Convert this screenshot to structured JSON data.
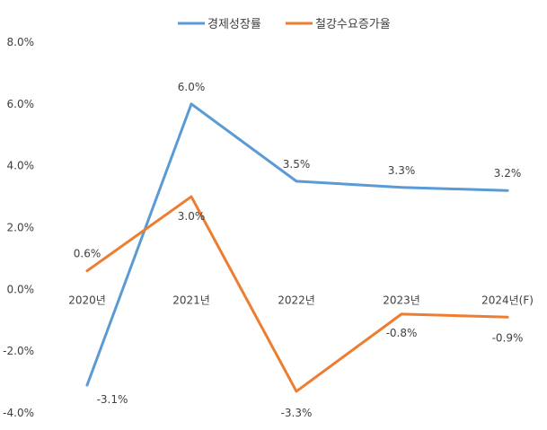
{
  "chart_data": {
    "type": "line",
    "title": "",
    "xlabel": "",
    "ylabel": "",
    "categories": [
      "2020년",
      "2021년",
      "2022년",
      "2023년",
      "2024년(F)"
    ],
    "ylim": [
      -4,
      8
    ],
    "yticks": [
      8,
      6,
      4,
      2,
      0,
      -2,
      -4
    ],
    "ytick_labels": [
      "8.0%",
      "6.0%",
      "4.0%",
      "2.0%",
      "0.0%",
      "-2.0%",
      "-4.0%"
    ],
    "grid": false,
    "legend_position": "top",
    "series": [
      {
        "name": "경제성장률",
        "color": "#5B9BD5",
        "values": [
          -3.1,
          6.0,
          3.5,
          3.3,
          3.2
        ],
        "labels": [
          "-3.1%",
          "6.0%",
          "3.5%",
          "3.3%",
          "3.2%"
        ]
      },
      {
        "name": "철강수요증가율",
        "color": "#ED7D31",
        "values": [
          0.6,
          3.0,
          -3.3,
          -0.8,
          -0.9
        ],
        "labels": [
          "0.6%",
          "3.0%",
          "-3.3%",
          "-0.8%",
          "-0.9%"
        ]
      }
    ]
  }
}
